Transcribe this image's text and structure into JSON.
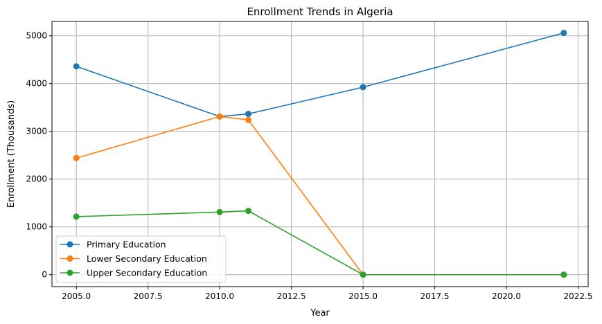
{
  "chart_data": {
    "type": "line",
    "title": "Enrollment Trends in Algeria",
    "xlabel": "Year",
    "ylabel": "Enrollment (Thousands)",
    "xlim": [
      2004.15,
      2022.85
    ],
    "ylim": [
      -250,
      5300
    ],
    "xticks": [
      2005.0,
      2007.5,
      2010.0,
      2012.5,
      2015.0,
      2017.5,
      2020.0,
      2022.5
    ],
    "xtick_labels": [
      "2005.0",
      "2007.5",
      "2010.0",
      "2012.5",
      "2015.0",
      "2017.5",
      "2020.0",
      "2022.5"
    ],
    "yticks": [
      0,
      1000,
      2000,
      3000,
      4000,
      5000
    ],
    "ytick_labels": [
      "0",
      "1000",
      "2000",
      "3000",
      "4000",
      "5000"
    ],
    "grid": true,
    "legend_position": "lower-left",
    "series": [
      {
        "name": "Primary Education",
        "color": "#1f77b4",
        "marker": "circle",
        "x": [
          2005,
          2010,
          2011,
          2015,
          2022
        ],
        "y": [
          4360,
          3310,
          3365,
          3925,
          5060
        ]
      },
      {
        "name": "Lower Secondary Education",
        "color": "#ff7f0e",
        "marker": "circle",
        "x": [
          2005,
          2010,
          2011,
          2015,
          2022
        ],
        "y": [
          2440,
          3310,
          3240,
          0,
          0
        ]
      },
      {
        "name": "Upper Secondary Education",
        "color": "#2ca02c",
        "marker": "circle",
        "x": [
          2005,
          2010,
          2011,
          2015,
          2022
        ],
        "y": [
          1215,
          1310,
          1335,
          0,
          0
        ]
      }
    ]
  }
}
